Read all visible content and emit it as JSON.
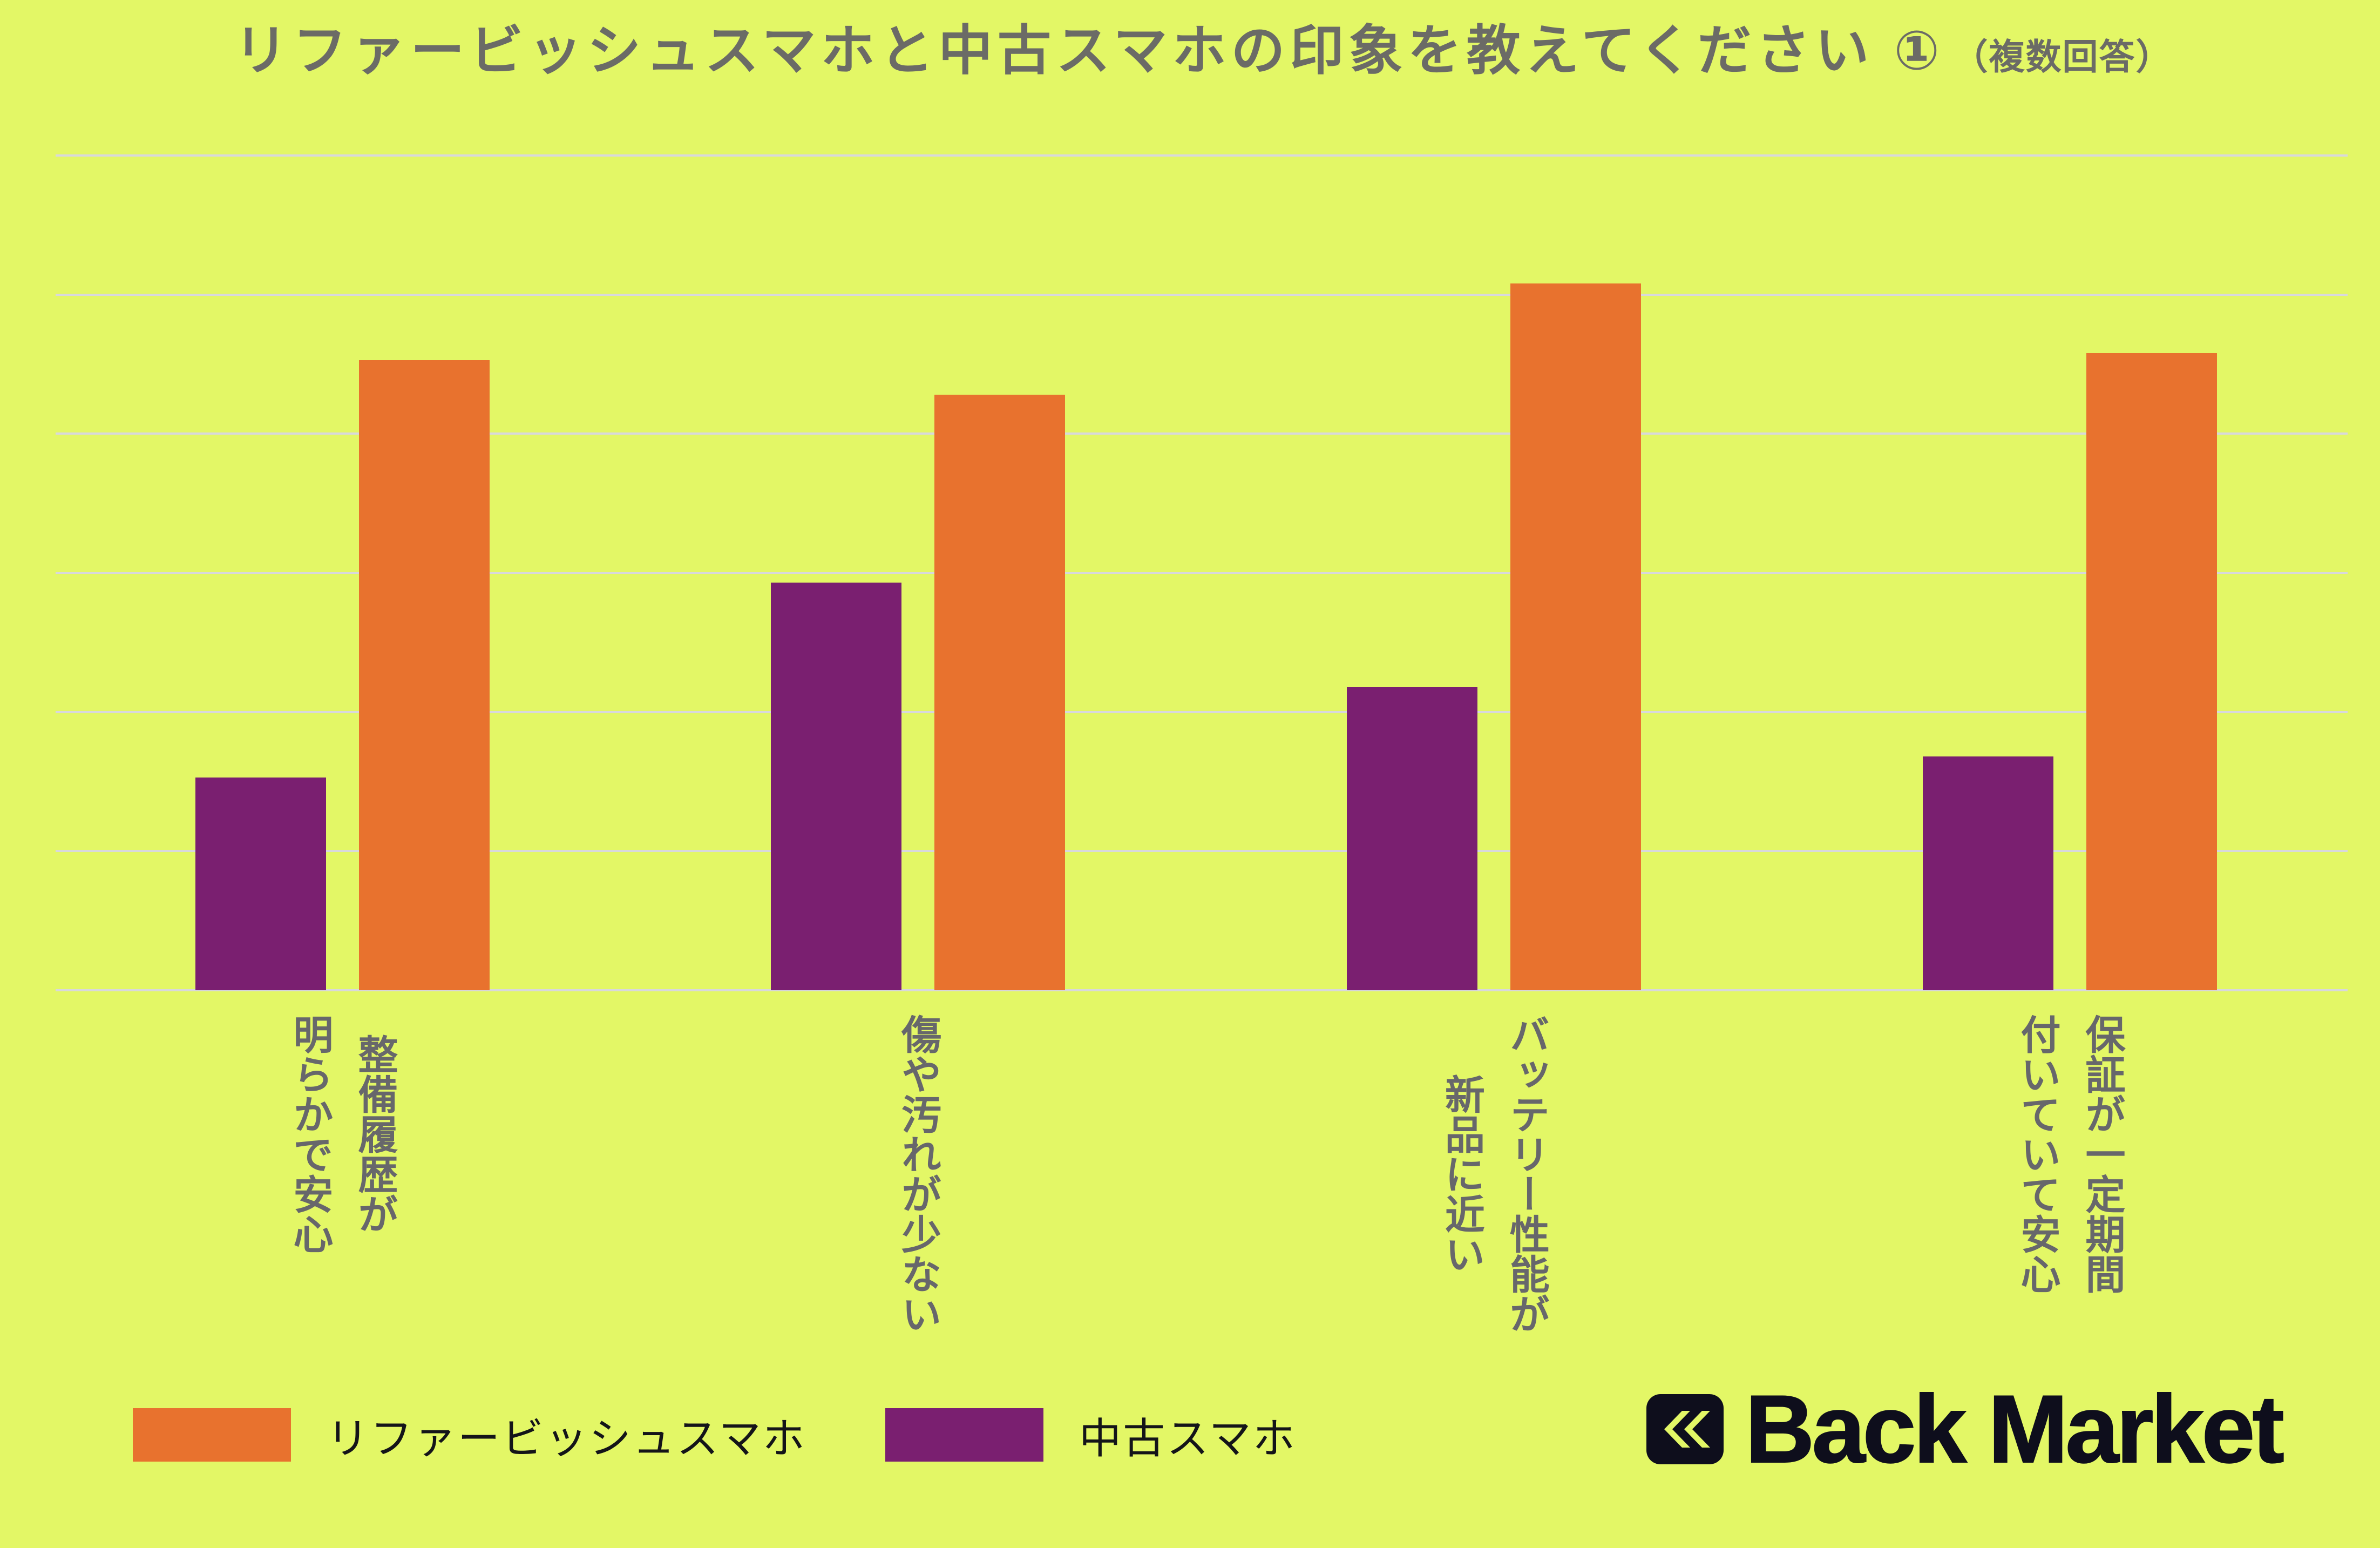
{
  "title": {
    "main": "リファービッシュスマホと中古スマホの印象を教えてください ①",
    "note": "（複数回答）"
  },
  "chart_data": {
    "type": "bar",
    "categories": [
      "整備履歴が\n明らかで安心",
      "傷や汚れが少ない",
      "バッテリー性能が\n新品に近い",
      "保証が一定期間\n付いていて安心"
    ],
    "series": [
      {
        "name": "リファービッシュスマホ",
        "color": "#e8722e",
        "values": [
          45.3,
          42.8,
          50.8,
          45.8
        ]
      },
      {
        "name": "中古スマホ",
        "color": "#7a1f70",
        "values": [
          15.3,
          29.3,
          21.8,
          16.8
        ]
      }
    ],
    "ylim": [
      0,
      60
    ],
    "gridline_count": 7,
    "legend_position": "bottom-left",
    "title": "リファービッシュスマホと中古スマホの印象を教えてください ①（複数回答）",
    "xlabel": "",
    "ylabel": ""
  },
  "legend": [
    {
      "label": "リファービッシュスマホ"
    },
    {
      "label": "中古スマホ"
    }
  ],
  "logo": {
    "text": "Back Market",
    "icon": "double-chevron-left-icon"
  },
  "colors": {
    "background": "#e3f766",
    "orange": "#e8722e",
    "purple": "#7a1f70",
    "grid": "#d8d8dc",
    "title_gray": "#6b6b66",
    "label_gray": "#67676b",
    "legend_text": "#141419",
    "logo_dark": "#0e0e1c"
  }
}
